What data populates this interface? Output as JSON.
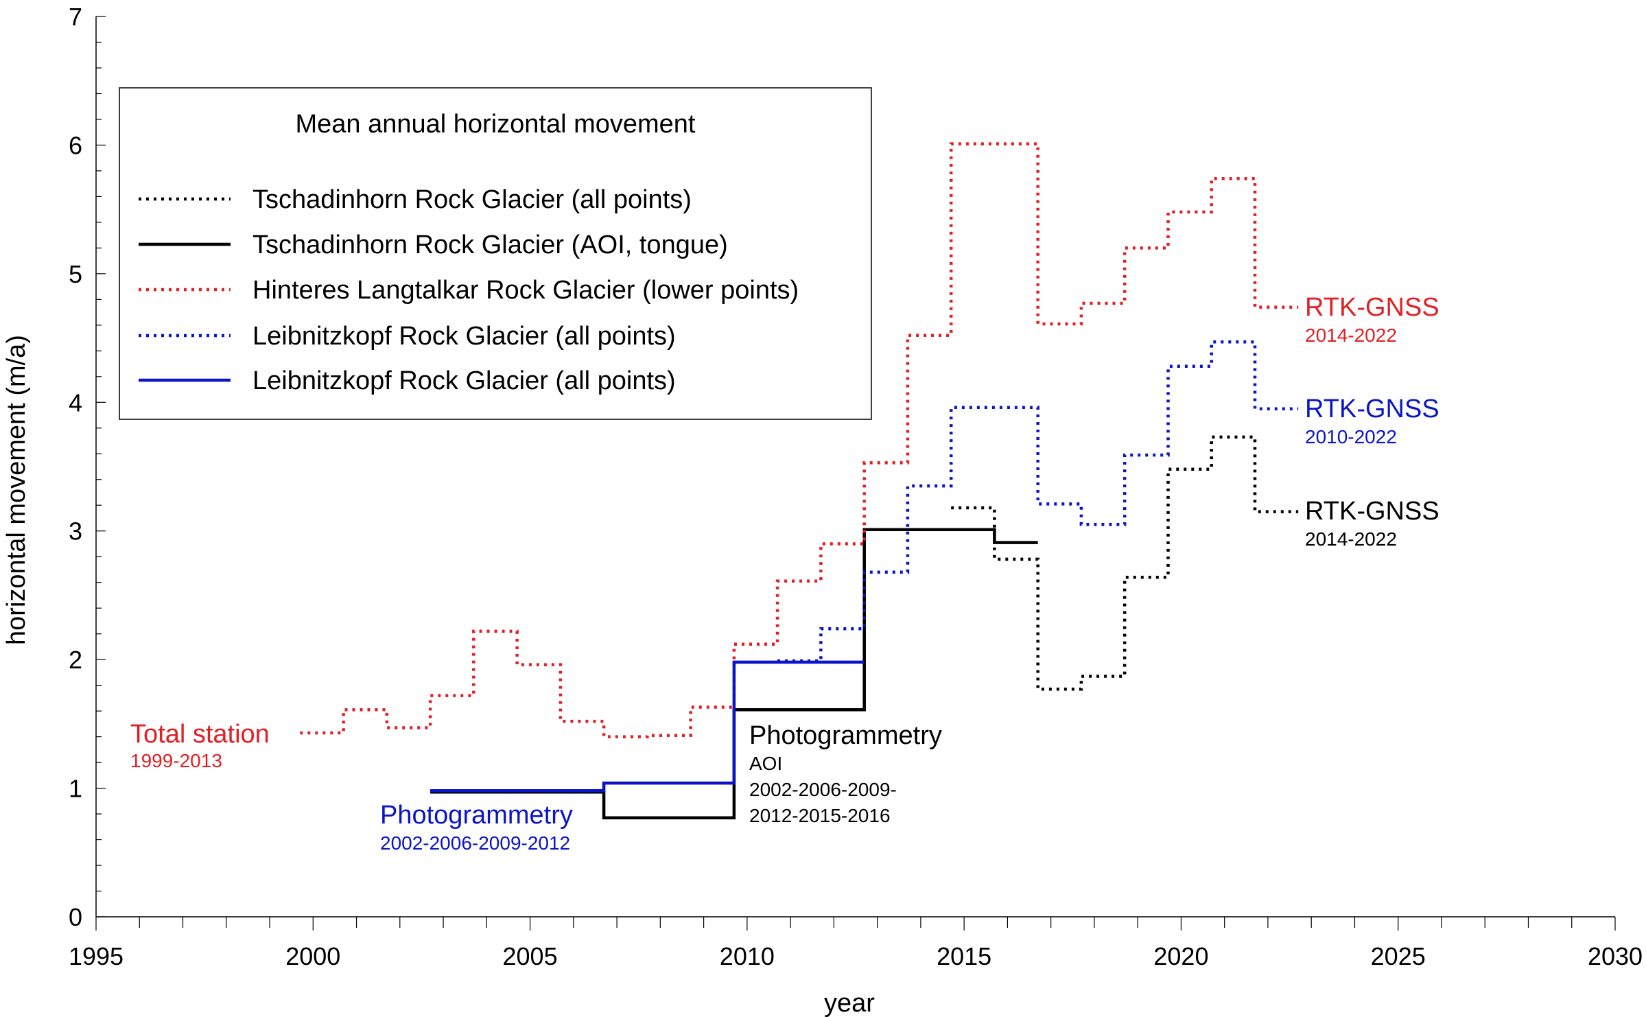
{
  "chart_data": {
    "type": "line",
    "title": "",
    "xlabel": "year",
    "ylabel": "horizontal movement (m/a)",
    "xlim": [
      1995,
      2030
    ],
    "ylim": [
      0,
      7
    ],
    "x_ticks": [
      "1995",
      "2000",
      "2005",
      "2010",
      "2015",
      "2020",
      "2025",
      "2030"
    ],
    "y_ticks": [
      "0",
      "1",
      "2",
      "3",
      "4",
      "5",
      "6",
      "7"
    ],
    "grid": false,
    "legend": {
      "title": "Mean annual horizontal movement",
      "placement": "top-left",
      "entries": [
        "Tschadinhorn Rock Glacier (all points)",
        "Tschadinhorn Rock Glacier (AOI, tongue)",
        "Hinteres Langtalkar Rock Glacier (lower points)",
        "Leibnitzkopf Rock Glacier (all points)",
        "Leibnitzkopf Rock Glacier (all points)"
      ]
    },
    "series": [
      {
        "name": "Tschadinhorn Rock Glacier (all points)",
        "color": "#000000",
        "style": "dotted",
        "steps": [
          [
            2014.7,
            2015.7,
            3.18
          ],
          [
            2015.7,
            2016.7,
            2.78
          ],
          [
            2016.7,
            2017.7,
            1.77
          ],
          [
            2017.7,
            2018.7,
            1.87
          ],
          [
            2018.7,
            2019.7,
            2.64
          ],
          [
            2019.7,
            2020.7,
            3.48
          ],
          [
            2020.7,
            2021.7,
            3.73
          ],
          [
            2021.7,
            2022.7,
            3.15
          ]
        ]
      },
      {
        "name": "Tschadinhorn Rock Glacier (AOI, tongue)",
        "color": "#000000",
        "style": "solid",
        "steps": [
          [
            2002.7,
            2006.7,
            0.97
          ],
          [
            2006.7,
            2009.7,
            0.77
          ],
          [
            2009.7,
            2012.7,
            1.61
          ],
          [
            2012.7,
            2015.7,
            3.01
          ],
          [
            2015.7,
            2016.7,
            2.91
          ]
        ]
      },
      {
        "name": "Hinteres Langtalkar Rock Glacier (lower points)",
        "color": "#e31e24",
        "style": "dotted",
        "steps": [
          [
            1999.7,
            2000.7,
            1.43
          ],
          [
            2000.7,
            2001.7,
            1.61
          ],
          [
            2001.7,
            2002.7,
            1.47
          ],
          [
            2002.7,
            2003.7,
            1.72
          ],
          [
            2003.7,
            2004.7,
            2.22
          ],
          [
            2004.7,
            2005.7,
            1.96
          ],
          [
            2005.7,
            2006.7,
            1.52
          ],
          [
            2006.7,
            2007.7,
            1.4
          ],
          [
            2007.7,
            2008.7,
            1.41
          ],
          [
            2008.7,
            2009.7,
            1.63
          ],
          [
            2009.7,
            2010.7,
            2.12
          ],
          [
            2010.7,
            2011.7,
            2.61
          ],
          [
            2011.7,
            2012.7,
            2.9
          ],
          [
            2012.7,
            2013.7,
            3.53
          ],
          [
            2013.7,
            2014.7,
            4.52
          ],
          [
            2014.7,
            2016.7,
            6.01
          ],
          [
            2016.7,
            2017.7,
            4.61
          ],
          [
            2017.7,
            2018.7,
            4.77
          ],
          [
            2018.7,
            2019.7,
            5.2
          ],
          [
            2019.7,
            2020.7,
            5.48
          ],
          [
            2020.7,
            2021.7,
            5.74
          ],
          [
            2021.7,
            2022.7,
            4.74
          ]
        ]
      },
      {
        "name": "Leibnitzkopf Rock Glacier (all points)",
        "color": "#0a14c8",
        "style": "dotted",
        "steps": [
          [
            2010.7,
            2011.7,
            1.99
          ],
          [
            2011.7,
            2012.7,
            2.24
          ],
          [
            2012.7,
            2013.7,
            2.68
          ],
          [
            2013.7,
            2014.7,
            3.35
          ],
          [
            2014.7,
            2016.7,
            3.96
          ],
          [
            2016.7,
            2017.7,
            3.21
          ],
          [
            2017.7,
            2018.7,
            3.05
          ],
          [
            2018.7,
            2019.7,
            3.59
          ],
          [
            2019.7,
            2020.7,
            4.28
          ],
          [
            2020.7,
            2021.7,
            4.47
          ],
          [
            2021.7,
            2022.7,
            3.95
          ]
        ]
      },
      {
        "name": "Leibnitzkopf Rock Glacier (all points)",
        "color": "#0a14c8",
        "style": "solid",
        "steps": [
          [
            2002.7,
            2006.7,
            0.98
          ],
          [
            2006.7,
            2009.7,
            1.04
          ],
          [
            2009.7,
            2012.7,
            1.98
          ]
        ]
      }
    ],
    "annotations": [
      {
        "id": "total",
        "main": "Total station",
        "sub": "1999-2013",
        "color": "#e31e24"
      },
      {
        "id": "photo-blue",
        "main": "Photogrammetry",
        "sub": "2002-2006-2009-2012",
        "color": "#0a14c8"
      },
      {
        "id": "photo-black",
        "main": "Photogrammetry",
        "sub": "AOI",
        "sub2": "2002-2006-2009-",
        "sub3": "2012-2015-2016",
        "color": "#000000"
      },
      {
        "id": "rtk-red",
        "main": "RTK-GNSS",
        "sub": "2014-2022",
        "color": "#e31e24"
      },
      {
        "id": "rtk-blue",
        "main": "RTK-GNSS",
        "sub": "2010-2022",
        "color": "#0a14c8"
      },
      {
        "id": "rtk-black",
        "main": "RTK-GNSS",
        "sub": "2014-2022",
        "color": "#000000"
      }
    ]
  }
}
